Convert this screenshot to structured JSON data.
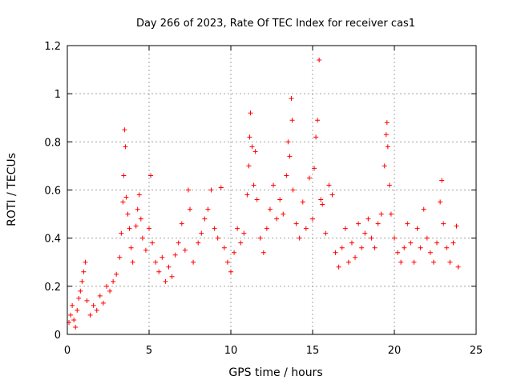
{
  "chart_data": {
    "type": "scatter",
    "title": "Day 266 of 2023, Rate Of TEC Index for receiver cas1",
    "xlabel": "GPS time / hours",
    "ylabel": "ROTI / TECUs",
    "xlim": [
      0,
      25
    ],
    "ylim": [
      0,
      1.2
    ],
    "x_ticks": [
      0,
      5,
      10,
      15,
      20,
      25
    ],
    "x_tick_labels": [
      "0",
      "5",
      "10",
      "15",
      "20",
      "25"
    ],
    "y_ticks": [
      0,
      0.2,
      0.4,
      0.6,
      0.8,
      1.0,
      1.2
    ],
    "y_tick_labels": [
      "0",
      "0.2",
      "0.4",
      "0.6",
      "0.8",
      "1",
      "1.2"
    ],
    "grid": true,
    "marker": "+",
    "color": "#ff0000",
    "series": [
      {
        "points": [
          [
            0.1,
            0.05
          ],
          [
            0.2,
            0.08
          ],
          [
            0.3,
            0.12
          ],
          [
            0.4,
            0.06
          ],
          [
            0.5,
            0.03
          ],
          [
            0.6,
            0.1
          ],
          [
            0.7,
            0.15
          ],
          [
            0.8,
            0.18
          ],
          [
            0.9,
            0.22
          ],
          [
            1.0,
            0.26
          ],
          [
            1.1,
            0.3
          ],
          [
            1.2,
            0.14
          ],
          [
            1.4,
            0.08
          ],
          [
            1.6,
            0.12
          ],
          [
            1.8,
            0.1
          ],
          [
            2.0,
            0.16
          ],
          [
            2.2,
            0.13
          ],
          [
            2.4,
            0.2
          ],
          [
            2.6,
            0.18
          ],
          [
            2.8,
            0.22
          ],
          [
            3.0,
            0.25
          ],
          [
            3.2,
            0.32
          ],
          [
            3.3,
            0.42
          ],
          [
            3.4,
            0.55
          ],
          [
            3.45,
            0.66
          ],
          [
            3.5,
            0.85
          ],
          [
            3.55,
            0.78
          ],
          [
            3.6,
            0.57
          ],
          [
            3.7,
            0.5
          ],
          [
            3.8,
            0.44
          ],
          [
            3.9,
            0.36
          ],
          [
            4.0,
            0.3
          ],
          [
            4.2,
            0.45
          ],
          [
            4.3,
            0.52
          ],
          [
            4.4,
            0.58
          ],
          [
            4.5,
            0.48
          ],
          [
            4.6,
            0.4
          ],
          [
            4.8,
            0.35
          ],
          [
            5.0,
            0.44
          ],
          [
            5.1,
            0.66
          ],
          [
            5.2,
            0.38
          ],
          [
            5.4,
            0.3
          ],
          [
            5.6,
            0.26
          ],
          [
            5.8,
            0.32
          ],
          [
            6.0,
            0.22
          ],
          [
            6.2,
            0.28
          ],
          [
            6.4,
            0.24
          ],
          [
            6.6,
            0.33
          ],
          [
            6.8,
            0.38
          ],
          [
            7.0,
            0.46
          ],
          [
            7.2,
            0.35
          ],
          [
            7.4,
            0.6
          ],
          [
            7.5,
            0.52
          ],
          [
            7.7,
            0.3
          ],
          [
            8.0,
            0.38
          ],
          [
            8.2,
            0.42
          ],
          [
            8.4,
            0.48
          ],
          [
            8.6,
            0.52
          ],
          [
            8.8,
            0.6
          ],
          [
            9.0,
            0.44
          ],
          [
            9.2,
            0.4
          ],
          [
            9.4,
            0.61
          ],
          [
            9.6,
            0.36
          ],
          [
            9.8,
            0.3
          ],
          [
            10.0,
            0.26
          ],
          [
            10.2,
            0.34
          ],
          [
            10.4,
            0.44
          ],
          [
            10.6,
            0.38
          ],
          [
            10.8,
            0.42
          ],
          [
            11.0,
            0.58
          ],
          [
            11.1,
            0.7
          ],
          [
            11.15,
            0.82
          ],
          [
            11.2,
            0.92
          ],
          [
            11.3,
            0.78
          ],
          [
            11.4,
            0.62
          ],
          [
            11.5,
            0.76
          ],
          [
            11.6,
            0.56
          ],
          [
            11.8,
            0.4
          ],
          [
            12.0,
            0.34
          ],
          [
            12.2,
            0.44
          ],
          [
            12.4,
            0.52
          ],
          [
            12.6,
            0.62
          ],
          [
            12.8,
            0.48
          ],
          [
            13.0,
            0.56
          ],
          [
            13.2,
            0.5
          ],
          [
            13.4,
            0.66
          ],
          [
            13.5,
            0.8
          ],
          [
            13.6,
            0.74
          ],
          [
            13.7,
            0.98
          ],
          [
            13.75,
            0.89
          ],
          [
            13.8,
            0.6
          ],
          [
            14.0,
            0.46
          ],
          [
            14.2,
            0.4
          ],
          [
            14.4,
            0.55
          ],
          [
            14.6,
            0.44
          ],
          [
            14.8,
            0.65
          ],
          [
            15.0,
            0.48
          ],
          [
            15.1,
            0.69
          ],
          [
            15.2,
            0.82
          ],
          [
            15.3,
            0.89
          ],
          [
            15.4,
            1.14
          ],
          [
            15.5,
            0.56
          ],
          [
            15.6,
            0.54
          ],
          [
            15.8,
            0.42
          ],
          [
            16.0,
            0.62
          ],
          [
            16.2,
            0.58
          ],
          [
            16.4,
            0.34
          ],
          [
            16.6,
            0.28
          ],
          [
            16.8,
            0.36
          ],
          [
            17.0,
            0.44
          ],
          [
            17.2,
            0.3
          ],
          [
            17.4,
            0.38
          ],
          [
            17.6,
            0.32
          ],
          [
            17.8,
            0.46
          ],
          [
            18.0,
            0.36
          ],
          [
            18.2,
            0.42
          ],
          [
            18.4,
            0.48
          ],
          [
            18.6,
            0.4
          ],
          [
            18.8,
            0.36
          ],
          [
            19.0,
            0.46
          ],
          [
            19.2,
            0.5
          ],
          [
            19.4,
            0.7
          ],
          [
            19.5,
            0.83
          ],
          [
            19.55,
            0.88
          ],
          [
            19.6,
            0.78
          ],
          [
            19.7,
            0.62
          ],
          [
            19.8,
            0.5
          ],
          [
            20.0,
            0.4
          ],
          [
            20.2,
            0.34
          ],
          [
            20.4,
            0.3
          ],
          [
            20.6,
            0.36
          ],
          [
            20.8,
            0.46
          ],
          [
            21.0,
            0.38
          ],
          [
            21.2,
            0.3
          ],
          [
            21.4,
            0.44
          ],
          [
            21.6,
            0.36
          ],
          [
            21.8,
            0.52
          ],
          [
            22.0,
            0.4
          ],
          [
            22.2,
            0.34
          ],
          [
            22.4,
            0.3
          ],
          [
            22.6,
            0.38
          ],
          [
            22.8,
            0.55
          ],
          [
            22.9,
            0.64
          ],
          [
            23.0,
            0.46
          ],
          [
            23.2,
            0.36
          ],
          [
            23.4,
            0.3
          ],
          [
            23.6,
            0.38
          ],
          [
            23.8,
            0.45
          ],
          [
            23.9,
            0.28
          ]
        ]
      }
    ]
  }
}
